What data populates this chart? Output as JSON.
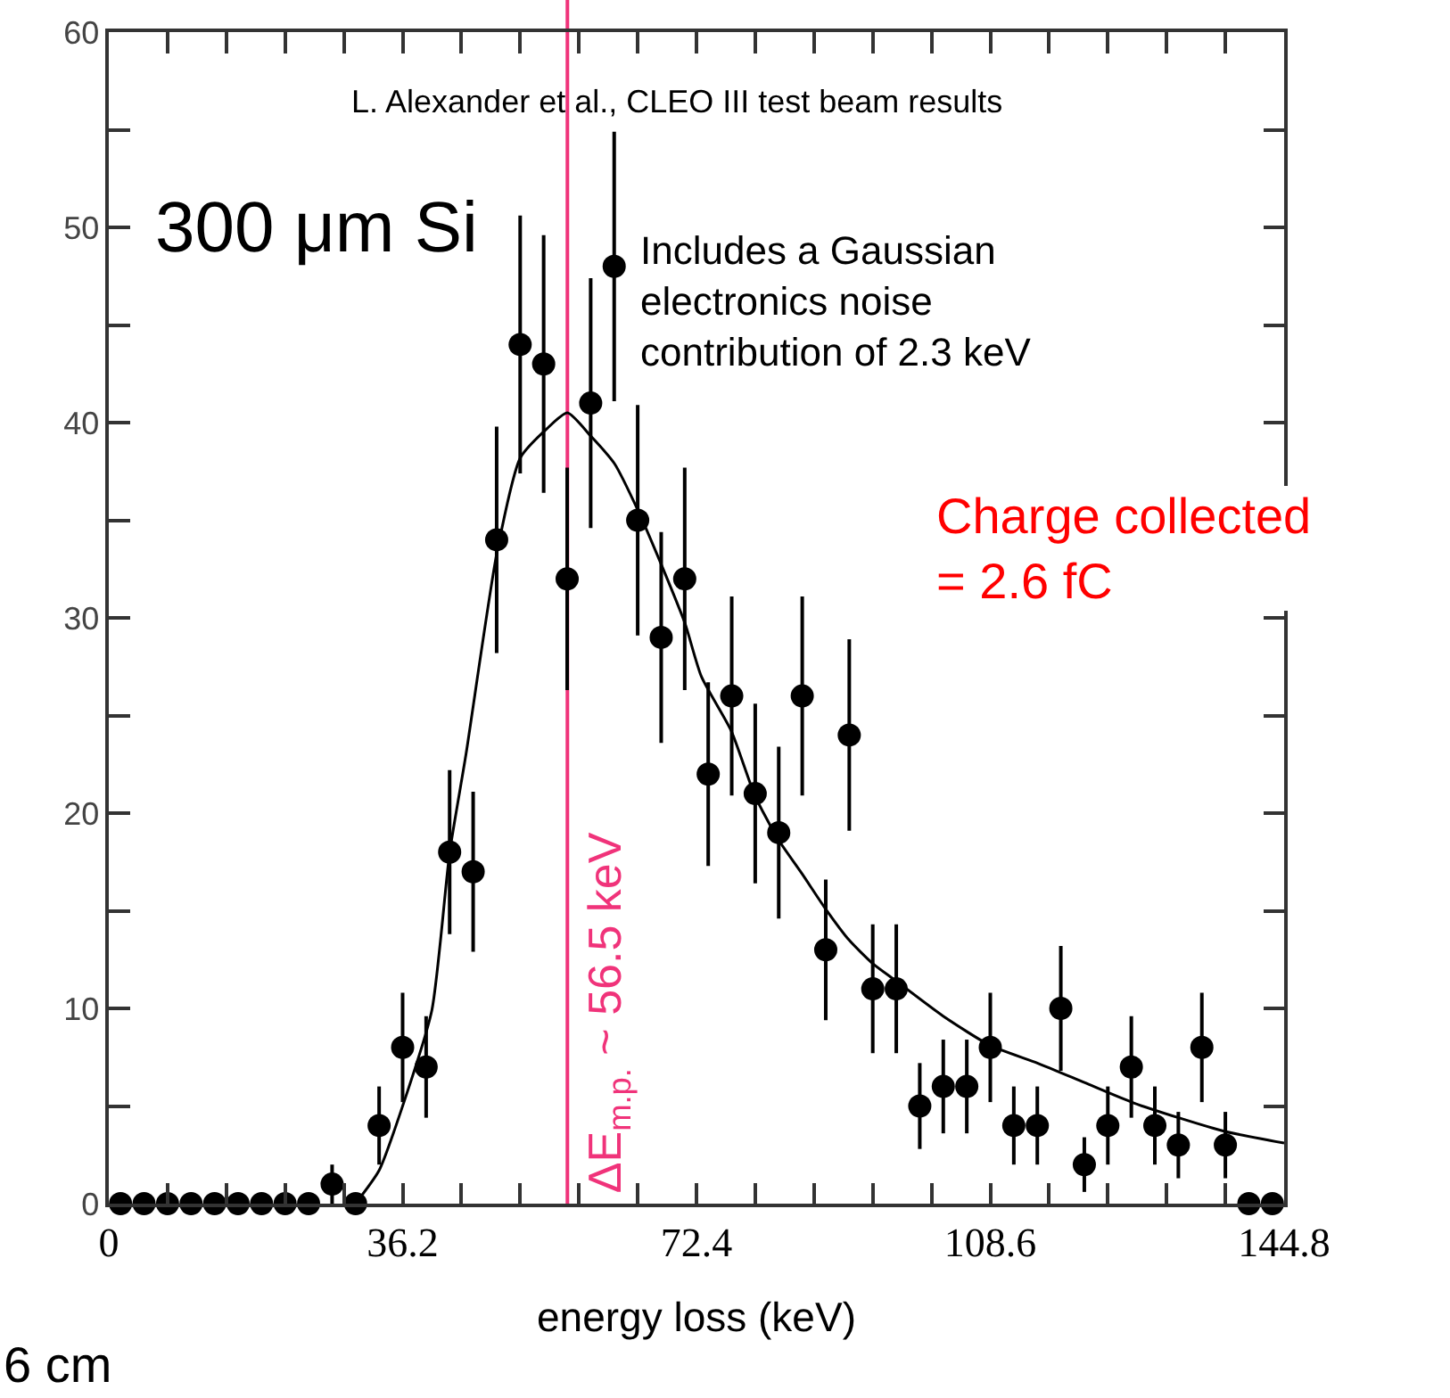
{
  "chart_data": {
    "type": "scatter",
    "xlabel": "energy loss (keV)",
    "x": [
      1.448,
      4.344,
      7.24,
      10.136,
      13.032,
      15.928,
      18.824,
      21.72,
      24.616,
      27.512,
      30.408,
      33.304,
      36.2,
      39.096,
      41.992,
      44.888,
      47.784,
      50.68,
      53.576,
      56.472,
      59.368,
      62.264,
      65.16,
      68.056,
      70.952,
      73.848,
      76.744,
      79.64,
      82.536,
      85.432,
      88.328,
      91.224,
      94.12,
      97.016,
      99.912,
      102.808,
      105.704,
      108.6,
      111.496,
      114.392,
      117.288,
      120.184,
      123.08,
      125.976,
      128.872,
      131.768,
      134.664,
      137.56,
      140.456,
      143.352
    ],
    "series": [
      {
        "color": "#000000",
        "marker": "circle",
        "values": [
          0,
          0,
          0,
          0,
          0,
          0,
          0,
          0,
          0,
          1,
          0,
          4,
          8,
          7,
          18,
          17,
          34,
          44,
          43,
          32,
          41,
          48,
          35,
          29,
          32,
          22,
          26,
          21,
          19,
          26,
          13,
          24,
          11,
          11,
          5,
          6,
          6,
          8,
          4,
          4,
          10,
          2,
          4,
          7,
          4,
          3,
          8,
          3,
          0,
          0
        ],
        "errors": [
          null,
          null,
          null,
          null,
          null,
          null,
          null,
          null,
          null,
          1,
          null,
          2,
          2.8,
          2.6,
          4.2,
          4.1,
          5.8,
          6.6,
          6.6,
          5.7,
          6.4,
          6.9,
          5.9,
          5.4,
          5.7,
          4.7,
          5.1,
          4.6,
          4.4,
          5.1,
          3.6,
          4.9,
          3.3,
          3.3,
          2.2,
          2.4,
          2.4,
          2.8,
          2,
          2,
          3.2,
          1.4,
          2,
          2.6,
          2,
          1.7,
          2.8,
          1.7,
          null,
          null
        ]
      },
      {
        "type": "line",
        "color": "#000000",
        "line_style": "solid",
        "x": [
          30.4,
          33.3,
          36.2,
          39.8,
          42,
          44,
          47.8,
          50.7,
          54,
          56.5,
          59.4,
          62.3,
          65.2,
          68.1,
          71,
          73,
          76.7,
          79.6,
          82.4,
          85.4,
          88.3,
          91.2,
          94.1,
          97,
          102.8,
          108.6,
          114.4,
          120.2,
          126,
          131.8,
          137.5,
          144.8
        ],
        "values": [
          0,
          1.7,
          5,
          9.9,
          18,
          23,
          33.3,
          38.2,
          39.7,
          40.5,
          39.3,
          37.9,
          35.5,
          32.7,
          29.7,
          27,
          24.2,
          20.9,
          18.7,
          16.9,
          15.1,
          13.5,
          12.3,
          11.4,
          9.6,
          8.1,
          7.2,
          6.2,
          5.2,
          4.4,
          3.7,
          3.1
        ]
      }
    ],
    "xlim": [
      0,
      144.8
    ],
    "xticks": [
      0,
      {
        "value": 7.24,
        "label": null
      },
      {
        "value": 14.48,
        "label": null
      },
      {
        "value": 21.72,
        "label": null
      },
      {
        "value": 28.96,
        "label": null
      },
      36.2,
      {
        "value": 43.44,
        "label": null
      },
      {
        "value": 50.68,
        "label": null
      },
      {
        "value": 57.92,
        "label": null
      },
      {
        "value": 65.16,
        "label": null
      },
      72.4,
      {
        "value": 79.64,
        "label": null
      },
      {
        "value": 86.88,
        "label": null
      },
      {
        "value": 94.12,
        "label": null
      },
      {
        "value": 101.36,
        "label": null
      },
      108.6,
      {
        "value": 115.84,
        "label": null
      },
      {
        "value": 123.08,
        "label": null
      },
      {
        "value": 130.32,
        "label": null
      },
      {
        "value": 137.56,
        "label": null
      },
      144.8
    ],
    "ylim": [
      0,
      60
    ],
    "yticks": [
      0,
      {
        "value": 5,
        "label": null
      },
      10,
      {
        "value": 15,
        "label": null
      },
      20,
      {
        "value": 25,
        "label": null
      },
      30,
      {
        "value": 35,
        "label": null
      },
      40,
      {
        "value": 45,
        "label": null
      },
      50,
      {
        "value": 55,
        "label": null
      },
      60
    ],
    "ref_lines": [
      {
        "axis": "x",
        "value": 56.5,
        "label": "ΔE$_{m.p.}$ ~ 56.5 keV",
        "color": "#f0337a",
        "line_style": "solid"
      }
    ],
    "annotations": [
      "L. Alexander et al., CLEO III test beam results",
      "300 μm Si",
      "Includes a Gaussian\nelectronics noise\ncontribution of 2.3 keV",
      "Charge collected\n= 2.6 fC",
      "6 cm"
    ],
    "grid": false
  }
}
